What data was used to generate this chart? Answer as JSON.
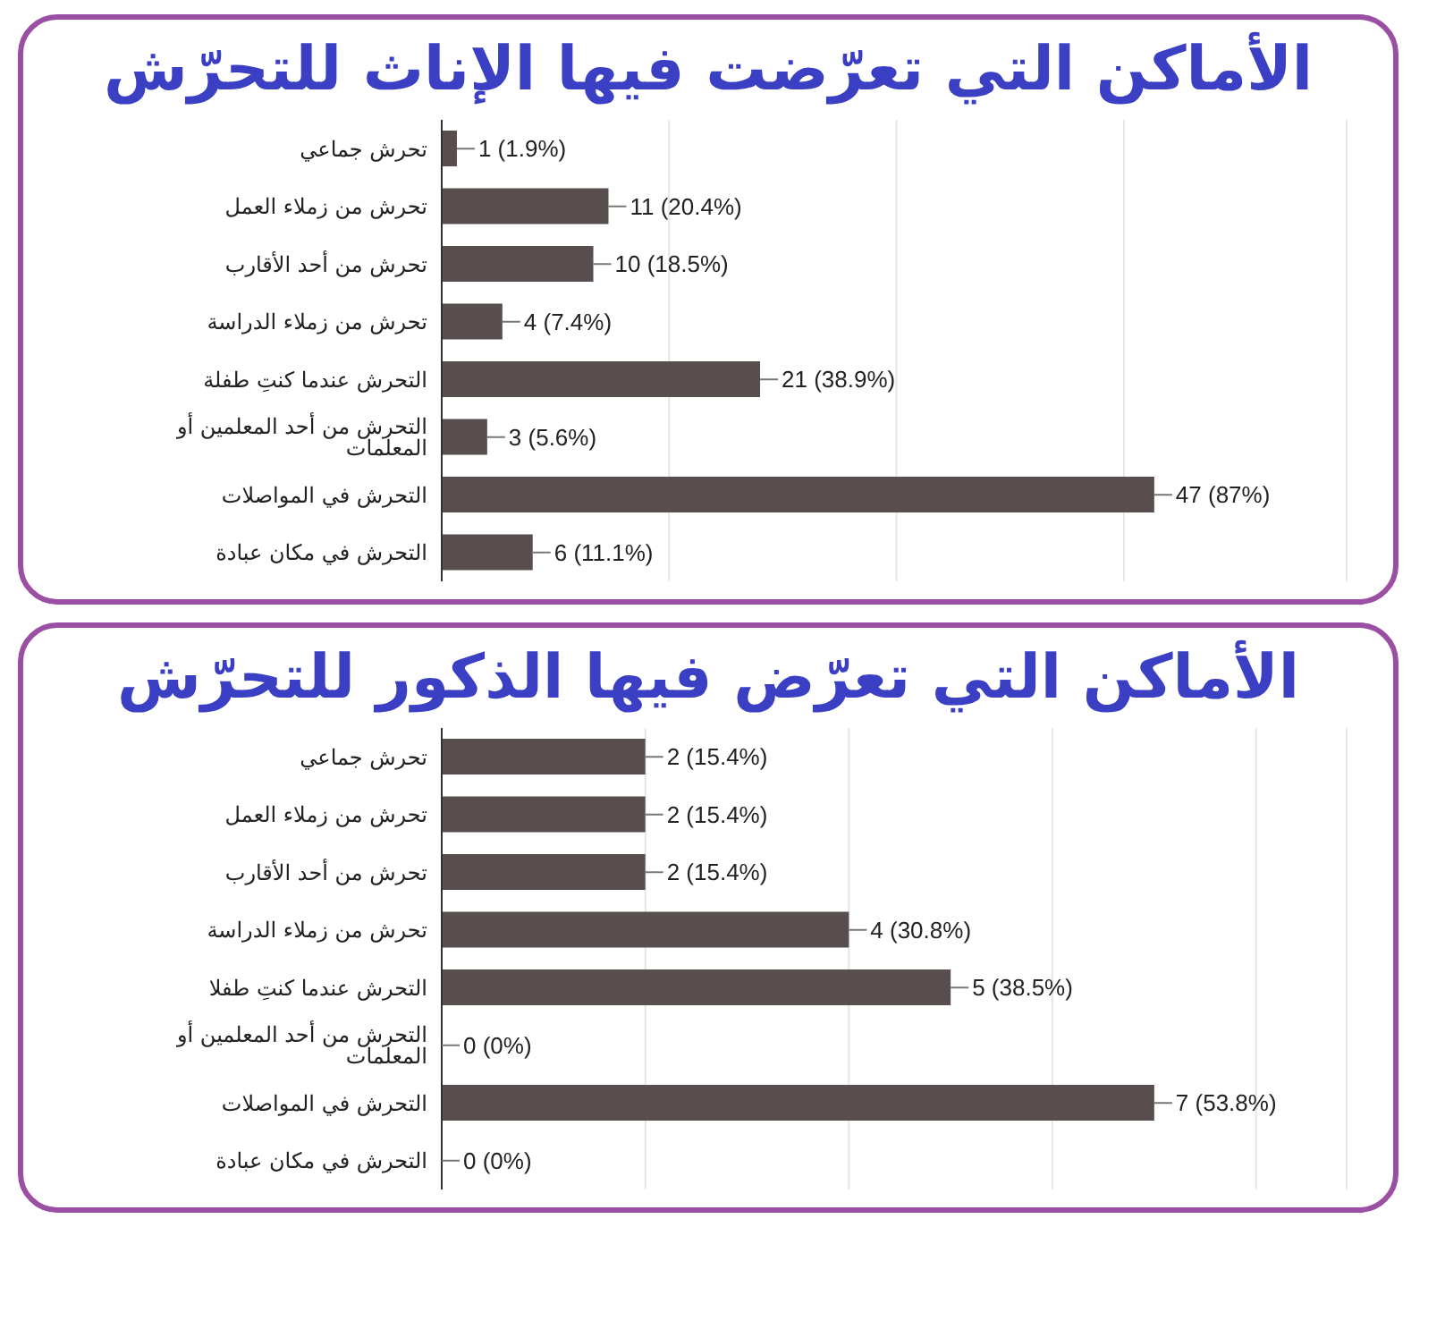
{
  "chart_data": [
    {
      "type": "bar",
      "orientation": "horizontal",
      "title": "الأماكن التي تعرّضت فيها الإناث للتحرّش",
      "categories": [
        "تحرش جماعي",
        "تحرش من زملاء العمل",
        "تحرش من أحد الأقارب",
        "تحرش من زملاء الدراسة",
        "التحرش عندما كنتِ طفلة",
        "التحرش من أحد المعلمين أو المعلمات",
        "التحرش في المواصلات",
        "التحرش في مكان عبادة"
      ],
      "values": [
        1,
        11,
        10,
        4,
        21,
        3,
        47,
        6
      ],
      "value_labels": [
        "1 (1.9%)",
        "11 (20.4%)",
        "10 (18.5%)",
        "4 (7.4%)",
        "21 (38.9%)",
        "3 (5.6%)",
        "47 (87%)",
        "6 (11.1%)"
      ],
      "color": "#594e4e",
      "grid": "x",
      "legend": false
    },
    {
      "type": "bar",
      "orientation": "horizontal",
      "title": "الأماكن التي تعرّض فيها الذكور للتحرّش",
      "categories": [
        "تحرش جماعي",
        "تحرش من زملاء العمل",
        "تحرش من أحد الأقارب",
        "تحرش من زملاء الدراسة",
        "التحرش عندما كنتِ طفلا",
        "التحرش من أحد المعلمين أو المعلمات",
        "التحرش في المواصلات",
        "التحرش في مكان عبادة"
      ],
      "values": [
        2,
        2,
        2,
        4,
        5,
        0,
        7,
        0
      ],
      "value_labels": [
        "2 (15.4%)",
        "2 (15.4%)",
        "2 (15.4%)",
        "4 (30.8%)",
        "5 (38.5%)",
        "0 (0%)",
        "7 (53.8%)",
        "0 (0%)"
      ],
      "color": "#594e4e",
      "grid": "x",
      "legend": false
    }
  ]
}
